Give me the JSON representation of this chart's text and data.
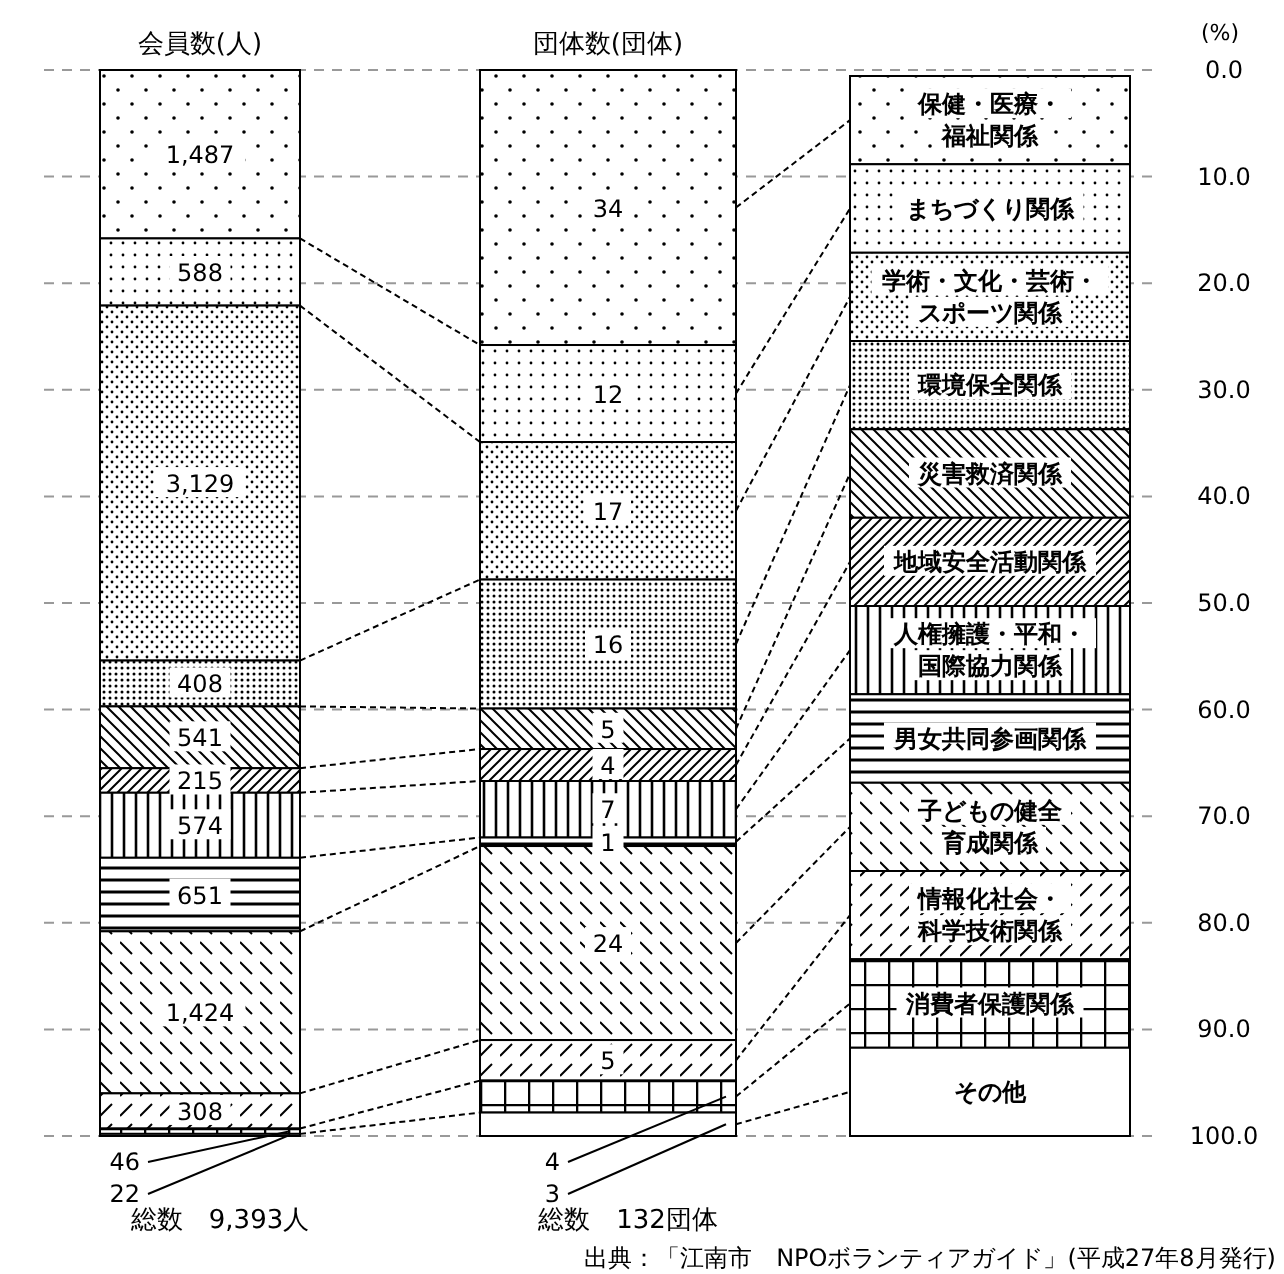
{
  "chart_data": {
    "type": "bar",
    "stacked": true,
    "categories": [
      "会員数(人)",
      "団体数(団体)"
    ],
    "ylabel": "(%)",
    "ylim": [
      100,
      0
    ],
    "yticks": [
      {
        "value": 0,
        "label": "0.0"
      },
      {
        "value": 10,
        "label": "10.0"
      },
      {
        "value": 20,
        "label": "20.0"
      },
      {
        "value": 30,
        "label": "30.0"
      },
      {
        "value": 40,
        "label": "40.0"
      },
      {
        "value": 50,
        "label": "50.0"
      },
      {
        "value": 60,
        "label": "60.0"
      },
      {
        "value": 70,
        "label": "70.0"
      },
      {
        "value": 80,
        "label": "80.0"
      },
      {
        "value": 90,
        "label": "90.0"
      },
      {
        "value": 100,
        "label": "100.0"
      }
    ],
    "grid": "y",
    "legend": "right",
    "series": [
      {
        "name": "保健・医療・福祉関係",
        "color": "#000000",
        "values": [
          15.8,
          25.8
        ]
      },
      {
        "name": "まちづくり関係",
        "color": "#000000",
        "values": [
          6.3,
          9.1
        ]
      },
      {
        "name": "学術・文化・芸術・スポーツ関係",
        "color": "#000000",
        "values": [
          33.3,
          12.9
        ]
      },
      {
        "name": "環境保全関係",
        "color": "#000000",
        "values": [
          4.3,
          12.1
        ]
      },
      {
        "name": "災害救済関係",
        "color": "#000000",
        "values": [
          5.8,
          3.8
        ]
      },
      {
        "name": "地域安全活動関係",
        "color": "#000000",
        "values": [
          2.3,
          3.0
        ]
      },
      {
        "name": "人権擁護・平和・国際協力関係",
        "color": "#000000",
        "values": [
          6.1,
          5.3
        ]
      },
      {
        "name": "男女共同参画関係",
        "color": "#000000",
        "values": [
          6.9,
          0.8
        ]
      },
      {
        "name": "子どもの健全育成関係",
        "color": "#000000",
        "values": [
          15.2,
          18.2
        ]
      },
      {
        "name": "情報化社会・科学技術関係",
        "color": "#000000",
        "values": [
          3.3,
          3.8
        ]
      },
      {
        "name": "消費者保護関係",
        "color": "#000000",
        "values": [
          0.5,
          3.0
        ]
      },
      {
        "name": "その他",
        "color": "#000000",
        "values": [
          0.2,
          2.2
        ]
      }
    ],
    "annotations": [
      "1,487",
      "588",
      "3,129",
      "408",
      "541",
      "215",
      "574",
      "651",
      "1,424",
      "308",
      "46",
      "22",
      "34",
      "12",
      "17",
      "16",
      "5",
      "4",
      "7",
      "1",
      "24",
      "5",
      "4",
      "3",
      "総数　9,393人",
      "総数　132団体",
      "出典：「江南市　NPOボランティアガイド」(平成27年8月発行)"
    ]
  }
}
